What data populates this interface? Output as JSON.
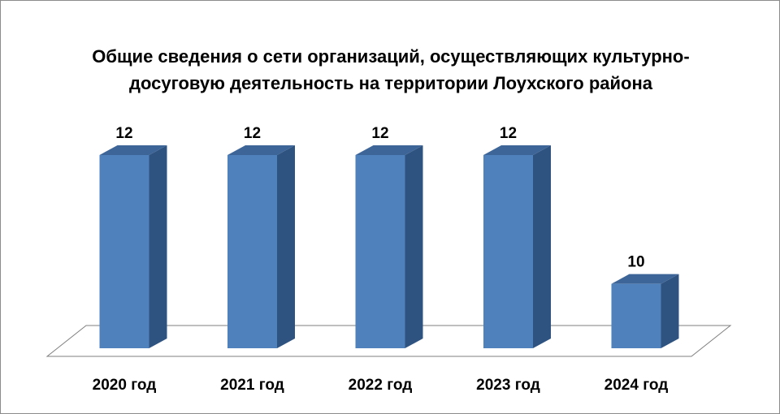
{
  "chart_data": {
    "type": "bar3d",
    "title": "Общие сведения о сети организаций, осуществляющих культурно-досуговую деятельность на территории Лоухского района",
    "categories": [
      "2020 год",
      "2021 год",
      "2022 год",
      "2023 год",
      "2024 год"
    ],
    "values": [
      12,
      12,
      12,
      12,
      10
    ],
    "color": "#4f81bd",
    "ylim": [
      9,
      12
    ]
  }
}
